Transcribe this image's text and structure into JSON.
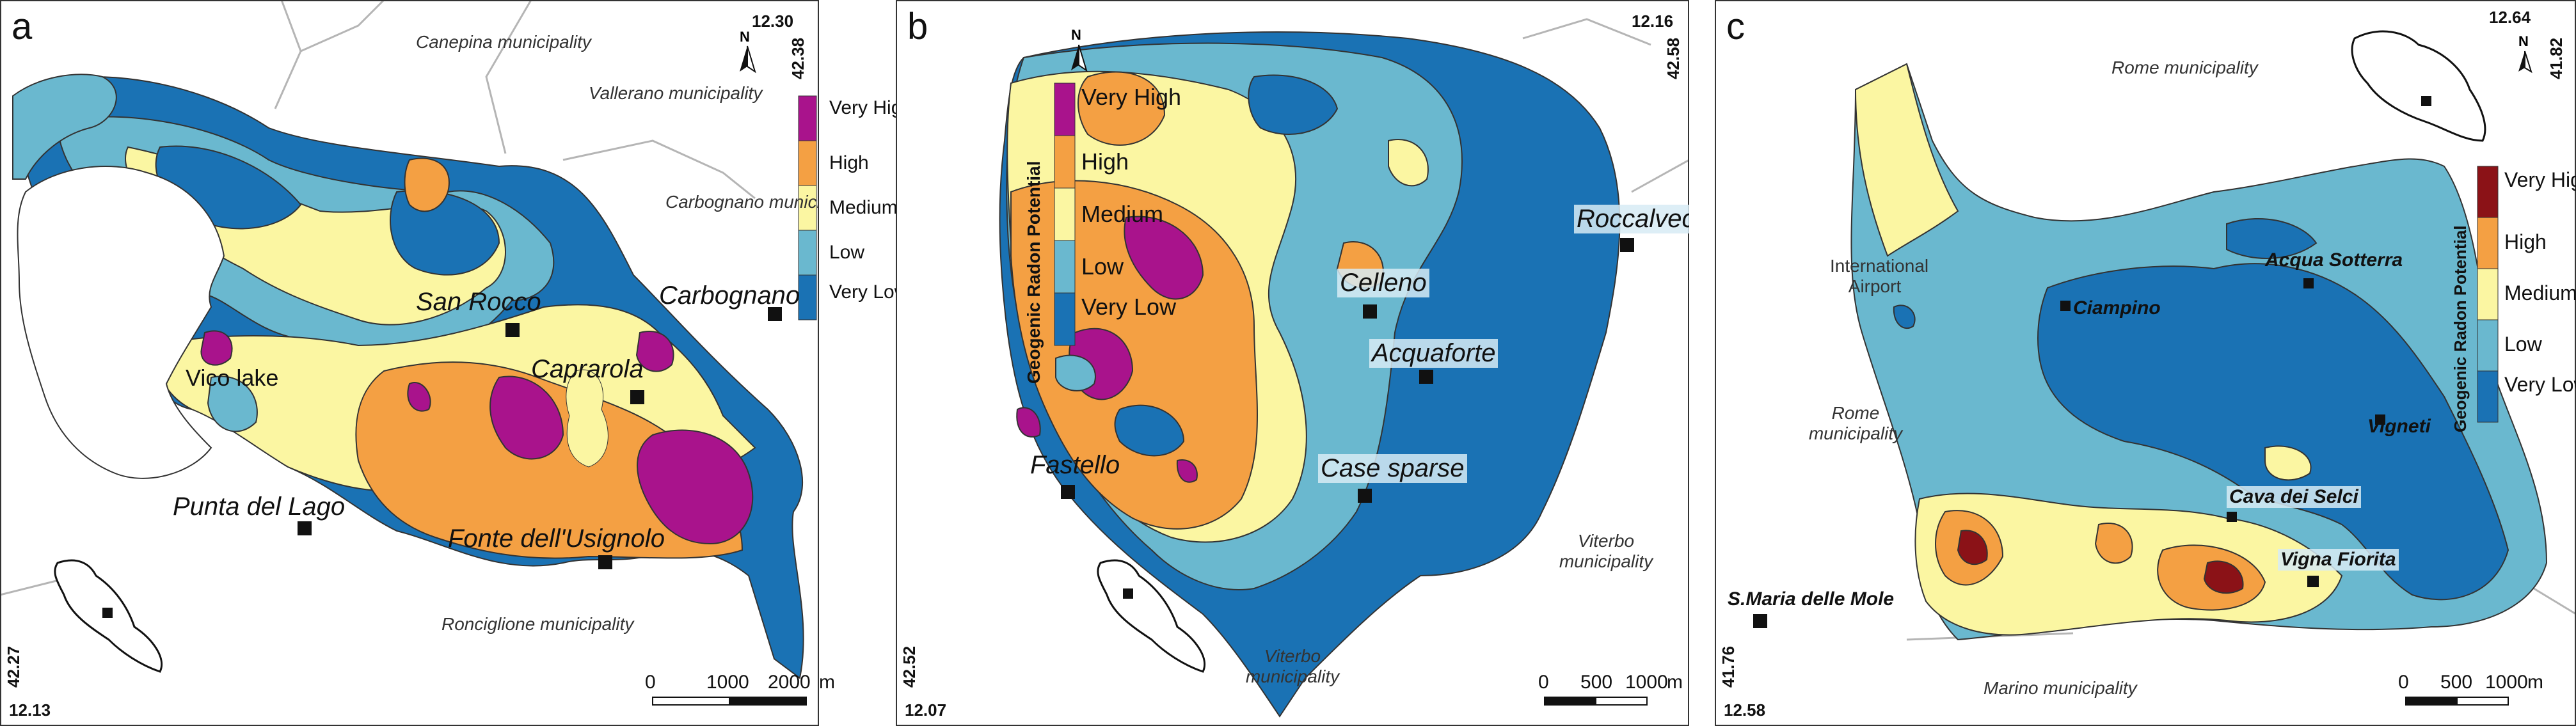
{
  "colors": {
    "very_low": "#1a72b4",
    "low": "#6ab8cf",
    "medium": "#fbf6a2",
    "high": "#f4a043",
    "very_high_a": "#a9138c",
    "very_high_c": "#8b1217",
    "outside": "#ffffff",
    "border": "#9a9a9a"
  },
  "legend": {
    "title": "Geogenic Radon Potential",
    "labels": [
      "Very High",
      "High",
      "Medium",
      "Low",
      "Very Low"
    ]
  },
  "north_label": "N",
  "panels": [
    {
      "id": "a",
      "letter": "a",
      "coords": {
        "top_right_lon": "12.30",
        "top_right_lat": "42.38",
        "bottom_left_lat": "42.27",
        "bottom_left_lon": "12.13"
      },
      "towns": [
        "San Rocco",
        "Carbognano",
        "Caprarola",
        "Punta del Lago",
        "Fonte dell'Usignolo"
      ],
      "lake": "Vico lake",
      "municipalities": [
        "Canepina municipality",
        "Vallerano municipality",
        "Carbognano municipality",
        "Ronciglione municipality"
      ],
      "scale": {
        "ticks": [
          "0",
          "1000",
          "2000"
        ],
        "unit": "m"
      }
    },
    {
      "id": "b",
      "letter": "b",
      "coords": {
        "top_right_lon": "12.16",
        "top_right_lat": "42.58",
        "bottom_left_lat": "42.52",
        "bottom_left_lon": "12.07"
      },
      "towns": [
        "Roccalvecce",
        "Celleno",
        "Acquaforte",
        "Fastello",
        "Case sparse"
      ],
      "municipalities": [
        "Viterbo municipality",
        "Viterbo municipality"
      ],
      "scale": {
        "ticks": [
          "0",
          "500",
          "1000"
        ],
        "unit": "m"
      }
    },
    {
      "id": "c",
      "letter": "c",
      "coords": {
        "top_right_lon": "12.64",
        "top_right_lat": "41.82",
        "bottom_left_lat": "41.76",
        "bottom_left_lon": "12.58"
      },
      "towns": [
        "Ciampino",
        "Acqua Sotterra",
        "Vigneti",
        "Cava dei Selci",
        "Vigna Fiorita",
        "S.Maria delle Mole"
      ],
      "municipalities": [
        "Rome municipality",
        "International Airport",
        "Rome municipality",
        "Marino municipality"
      ],
      "scale": {
        "ticks": [
          "0",
          "500",
          "1000"
        ],
        "unit": "m"
      }
    }
  ]
}
